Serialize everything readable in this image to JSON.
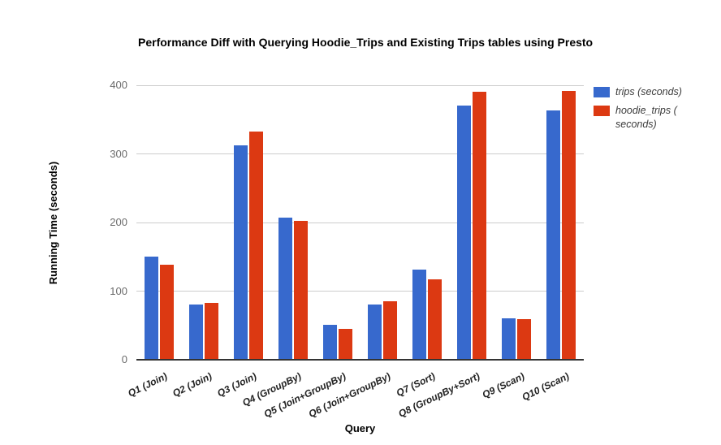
{
  "title": "Performance Diff with Querying Hoodie_Trips and Existing Trips tables using Presto",
  "axes": {
    "y_title": "Running Time (seconds)",
    "x_title": "Query",
    "y_ticks": [
      0,
      100,
      200,
      300,
      400
    ],
    "y_max": 400
  },
  "colors": {
    "series1": "#3769CD",
    "series2": "#DC3912",
    "gridline": "#cccccc",
    "axis_line": "#333333"
  },
  "chart_data": {
    "type": "bar",
    "title": "Performance Diff with Querying Hoodie_Trips and Existing Trips tables using Presto",
    "xlabel": "Query",
    "ylabel": "Running Time (seconds)",
    "ylim": [
      0,
      400
    ],
    "grid": true,
    "legend_position": "right",
    "categories": [
      "Q1 (Join)",
      "Q2 (Join)",
      "Q3 (Join)",
      "Q4 (GroupBy)",
      "Q5 (Join+GroupBy)",
      "Q6 (Join+GroupBy)",
      "Q7 (Sort)",
      "Q8 (GroupBy+Sort)",
      "Q9 (Scan)",
      "Q10 (Scan)"
    ],
    "series": [
      {
        "name": "trips (seconds)",
        "color": "#3769CD",
        "values": [
          150,
          81,
          313,
          207,
          51,
          81,
          131,
          371,
          60,
          363
        ]
      },
      {
        "name": "hoodie_trips ( seconds)",
        "color": "#DC3912",
        "values": [
          138,
          83,
          332,
          202,
          45,
          85,
          117,
          390,
          59,
          392
        ]
      }
    ]
  }
}
